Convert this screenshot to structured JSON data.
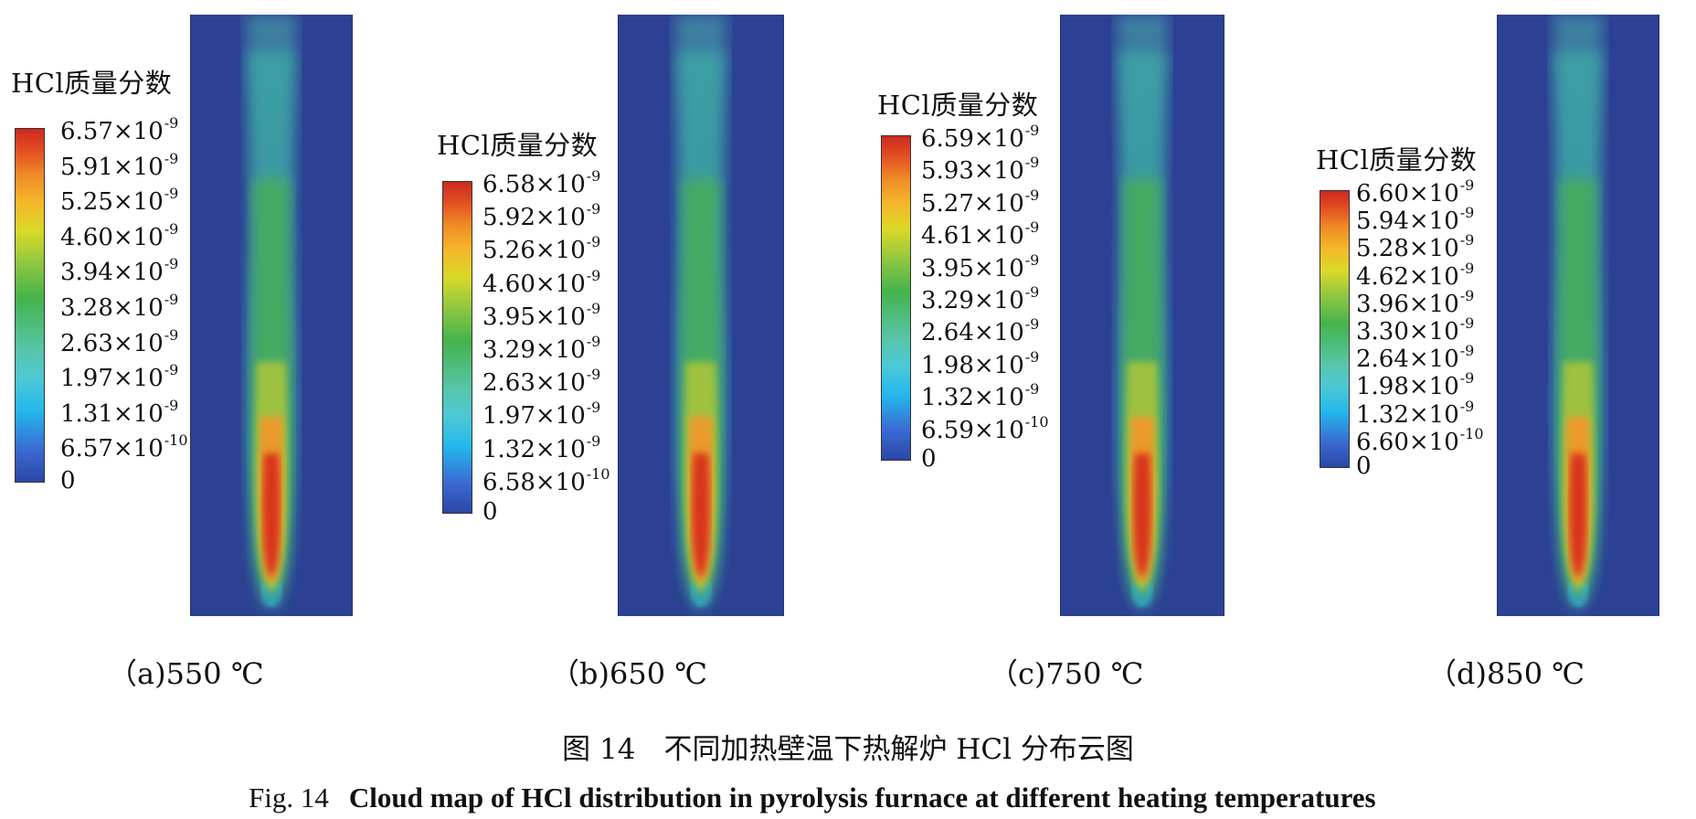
{
  "panels": [
    {
      "legend_title": "HCl质量分数",
      "ticks": [
        {
          "m": "6.57×10",
          "e": "-9"
        },
        {
          "m": "5.91×10",
          "e": "-9"
        },
        {
          "m": "5.25×10",
          "e": "-9"
        },
        {
          "m": "4.60×10",
          "e": "-9"
        },
        {
          "m": "3.94×10",
          "e": "-9"
        },
        {
          "m": "3.28×10",
          "e": "-9"
        },
        {
          "m": "2.63×10",
          "e": "-9"
        },
        {
          "m": "1.97×10",
          "e": "-9"
        },
        {
          "m": "1.31×10",
          "e": "-9"
        },
        {
          "m": "6.57×10",
          "e": "-10"
        },
        {
          "m": "0",
          "e": ""
        }
      ],
      "label": "（a)550 ℃"
    },
    {
      "legend_title": "HCl质量分数",
      "ticks": [
        {
          "m": "6.58×10",
          "e": "-9"
        },
        {
          "m": "5.92×10",
          "e": "-9"
        },
        {
          "m": "5.26×10",
          "e": "-9"
        },
        {
          "m": "4.60×10",
          "e": "-9"
        },
        {
          "m": "3.95×10",
          "e": "-9"
        },
        {
          "m": "3.29×10",
          "e": "-9"
        },
        {
          "m": "2.63×10",
          "e": "-9"
        },
        {
          "m": "1.97×10",
          "e": "-9"
        },
        {
          "m": "1.32×10",
          "e": "-9"
        },
        {
          "m": "6.58×10",
          "e": "-10"
        },
        {
          "m": "0",
          "e": ""
        }
      ],
      "label": "（b)650 ℃"
    },
    {
      "legend_title": "HCl质量分数",
      "ticks": [
        {
          "m": "6.59×10",
          "e": "-9"
        },
        {
          "m": "5.93×10",
          "e": "-9"
        },
        {
          "m": "5.27×10",
          "e": "-9"
        },
        {
          "m": "4.61×10",
          "e": "-9"
        },
        {
          "m": "3.95×10",
          "e": "-9"
        },
        {
          "m": "3.29×10",
          "e": "-9"
        },
        {
          "m": "2.64×10",
          "e": "-9"
        },
        {
          "m": "1.98×10",
          "e": "-9"
        },
        {
          "m": "1.32×10",
          "e": "-9"
        },
        {
          "m": "6.59×10",
          "e": "-10"
        },
        {
          "m": "0",
          "e": ""
        }
      ],
      "label": "（c)750 ℃"
    },
    {
      "legend_title": "HCl质量分数",
      "ticks": [
        {
          "m": "6.60×10",
          "e": "-9"
        },
        {
          "m": "5.94×10",
          "e": "-9"
        },
        {
          "m": "5.28×10",
          "e": "-9"
        },
        {
          "m": "4.62×10",
          "e": "-9"
        },
        {
          "m": "3.96×10",
          "e": "-9"
        },
        {
          "m": "3.30×10",
          "e": "-9"
        },
        {
          "m": "2.64×10",
          "e": "-9"
        },
        {
          "m": "1.98×10",
          "e": "-9"
        },
        {
          "m": "1.32×10",
          "e": "-9"
        },
        {
          "m": "6.60×10",
          "e": "-10"
        },
        {
          "m": "0",
          "e": ""
        }
      ],
      "label": "（d)850 ℃"
    }
  ],
  "caption": {
    "cn": "图 14　不同加热壁温下热解炉 HCl 分布云图",
    "en_num": "Fig. 14",
    "en_text": "Cloud map of HCl distribution in pyrolysis furnace at different heating temperatures"
  },
  "colors": {
    "background_field": "#2c4193",
    "colormap": [
      "#2b47a6",
      "#3a6ad2",
      "#24b7ec",
      "#57c6ab",
      "#45b34b",
      "#d9d928",
      "#f08a26",
      "#cd2a1f"
    ]
  }
}
